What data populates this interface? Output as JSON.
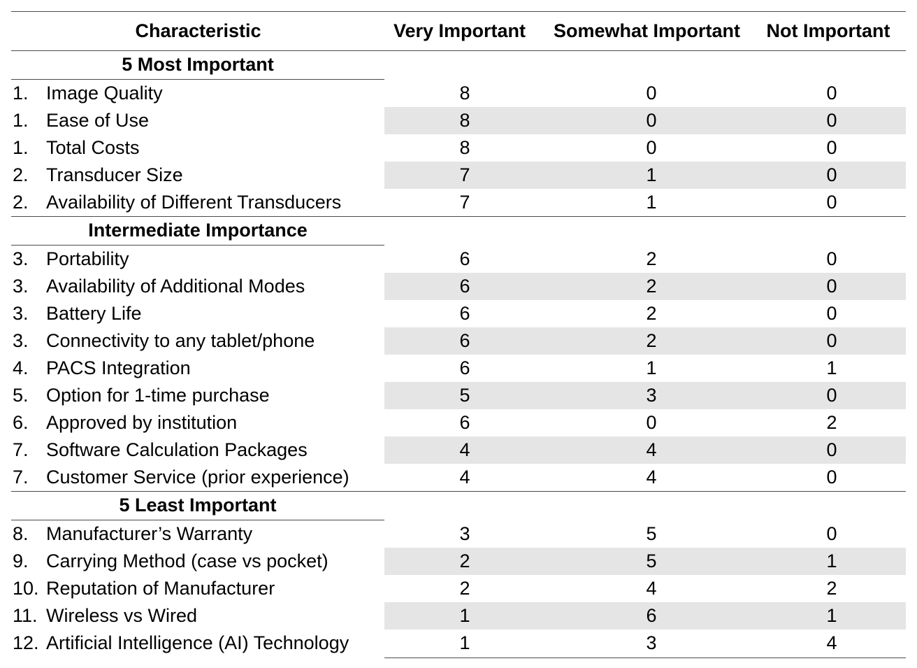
{
  "headers": [
    "Characteristic",
    "Very Important",
    "Somewhat Important",
    "Not Important"
  ],
  "sections": [
    {
      "title": "5 Most Important",
      "rows": [
        {
          "rank": "1.",
          "name": "Image Quality",
          "very": "8",
          "somewhat": "0",
          "not": "0"
        },
        {
          "rank": "1.",
          "name": "Ease of Use",
          "very": "8",
          "somewhat": "0",
          "not": "0"
        },
        {
          "rank": "1.",
          "name": "Total Costs",
          "very": "8",
          "somewhat": "0",
          "not": "0"
        },
        {
          "rank": "2.",
          "name": "Transducer Size",
          "very": "7",
          "somewhat": "1",
          "not": "0"
        },
        {
          "rank": "2.",
          "name": "Availability of Different Transducers",
          "very": "7",
          "somewhat": "1",
          "not": "0"
        }
      ]
    },
    {
      "title": "Intermediate Importance",
      "rows": [
        {
          "rank": "3.",
          "name": "Portability",
          "very": "6",
          "somewhat": "2",
          "not": "0"
        },
        {
          "rank": "3.",
          "name": "Availability of Additional Modes",
          "very": "6",
          "somewhat": "2",
          "not": "0"
        },
        {
          "rank": "3.",
          "name": "Battery Life",
          "very": "6",
          "somewhat": "2",
          "not": "0"
        },
        {
          "rank": "3.",
          "name": "Connectivity to any tablet/phone",
          "very": "6",
          "somewhat": "2",
          "not": "0"
        },
        {
          "rank": "4.",
          "name": "PACS Integration",
          "very": "6",
          "somewhat": "1",
          "not": "1"
        },
        {
          "rank": "5.",
          "name": "Option for 1-time purchase",
          "very": "5",
          "somewhat": "3",
          "not": "0"
        },
        {
          "rank": "6.",
          "name": "Approved by institution",
          "very": "6",
          "somewhat": "0",
          "not": "2"
        },
        {
          "rank": "7.",
          "name": "Software Calculation Packages",
          "very": "4",
          "somewhat": "4",
          "not": "0"
        },
        {
          "rank": "7.",
          "name": "Customer Service (prior experience)",
          "very": "4",
          "somewhat": "4",
          "not": "0"
        }
      ]
    },
    {
      "title": "5 Least Important",
      "rows": [
        {
          "rank": "8.",
          "name": "Manufacturer’s Warranty",
          "very": "3",
          "somewhat": "5",
          "not": "0"
        },
        {
          "rank": "9.",
          "name": "Carrying Method (case vs pocket)",
          "very": "2",
          "somewhat": "5",
          "not": "1"
        },
        {
          "rank": "10.",
          "name": "Reputation of Manufacturer",
          "very": "2",
          "somewhat": "4",
          "not": "2"
        },
        {
          "rank": "11.",
          "name": "Wireless vs Wired",
          "very": "1",
          "somewhat": "6",
          "not": "1"
        },
        {
          "rank": "12.",
          "name": "Artificial Intelligence (AI) Technology",
          "very": "1",
          "somewhat": "3",
          "not": "4"
        }
      ]
    }
  ],
  "colors": {
    "row_shade": "#e6e5e6",
    "rule": "#4a4a4a",
    "text": "#000000"
  }
}
